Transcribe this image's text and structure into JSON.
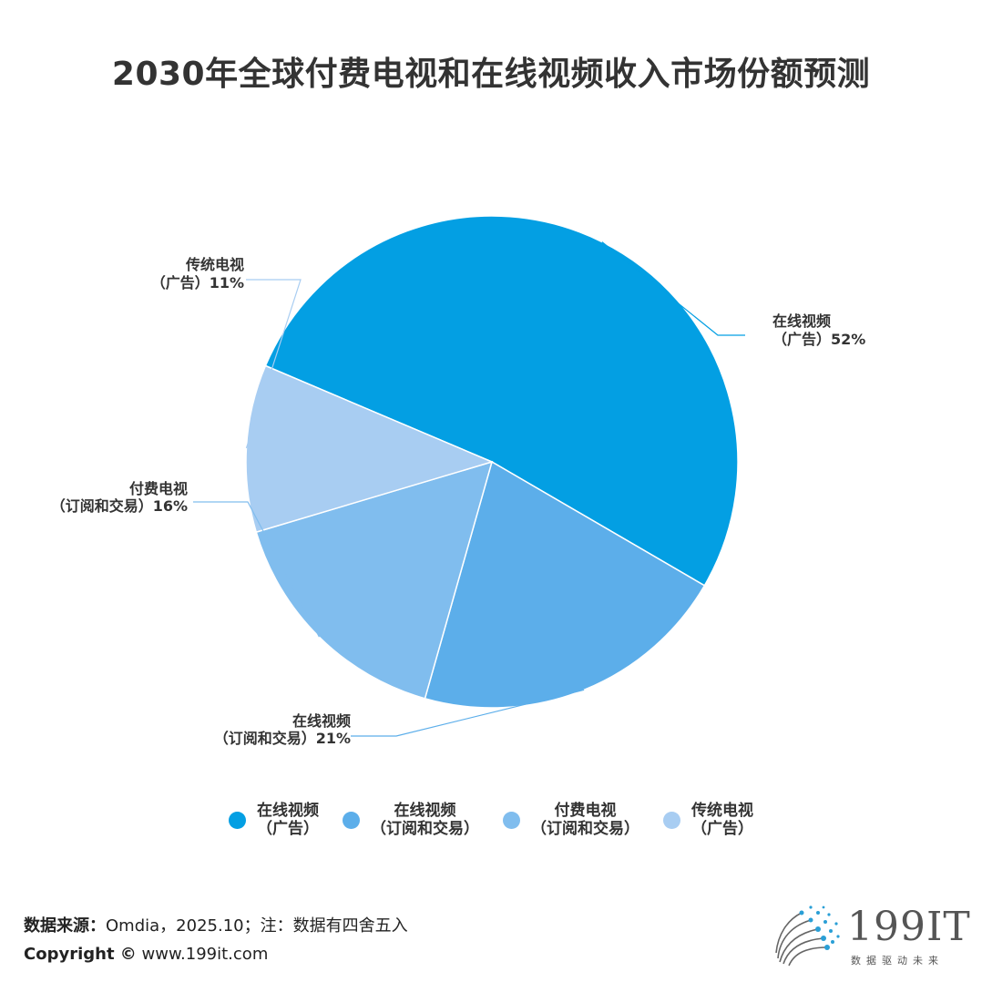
{
  "title": "2030年全球付费电视和在线视频收入市场份额预测",
  "chart_data": {
    "type": "pie",
    "title": "2030年全球付费电视和在线视频收入市场份额预测",
    "unit": "%",
    "slices": [
      {
        "label": "在线视频（广告）",
        "label_lines": [
          "在线视频",
          "（广告）"
        ],
        "value": 52,
        "color": "#039fe3",
        "pct_label": "52%"
      },
      {
        "label": "在线视频（订阅和交易）",
        "label_lines": [
          "在线视频",
          "（订阅和交易）"
        ],
        "value": 21,
        "color": "#5caeea",
        "pct_label": "21%"
      },
      {
        "label": "付费电视（订阅和交易）",
        "label_lines": [
          "付费电视",
          "（订阅和交易）"
        ],
        "value": 16,
        "color": "#80bdee",
        "pct_label": "16%"
      },
      {
        "label": "传统电视（广告）",
        "label_lines": [
          "传统电视",
          "（广告）"
        ],
        "value": 11,
        "color": "#a8cdf2",
        "pct_label": "11%"
      }
    ],
    "legend_position": "bottom"
  },
  "legend": [
    {
      "line1": "在线视频",
      "line2": "（广告）",
      "color": "#039fe3"
    },
    {
      "line1": "在线视频",
      "line2": "（订阅和交易）",
      "color": "#5caeea"
    },
    {
      "line1": "付费电视",
      "line2": "（订阅和交易）",
      "color": "#80bdee"
    },
    {
      "line1": "传统电视",
      "line2": "（广告）",
      "color": "#a8cdf2"
    }
  ],
  "footer": {
    "source_label": "数据来源：",
    "source_text": "Omdia，2025.10；注：数据有四舍五入",
    "copyright_label": "Copyright ©",
    "copyright_text": " www.199it.com"
  },
  "brand": {
    "name": "199IT",
    "tagline": "数据驱动未来"
  }
}
